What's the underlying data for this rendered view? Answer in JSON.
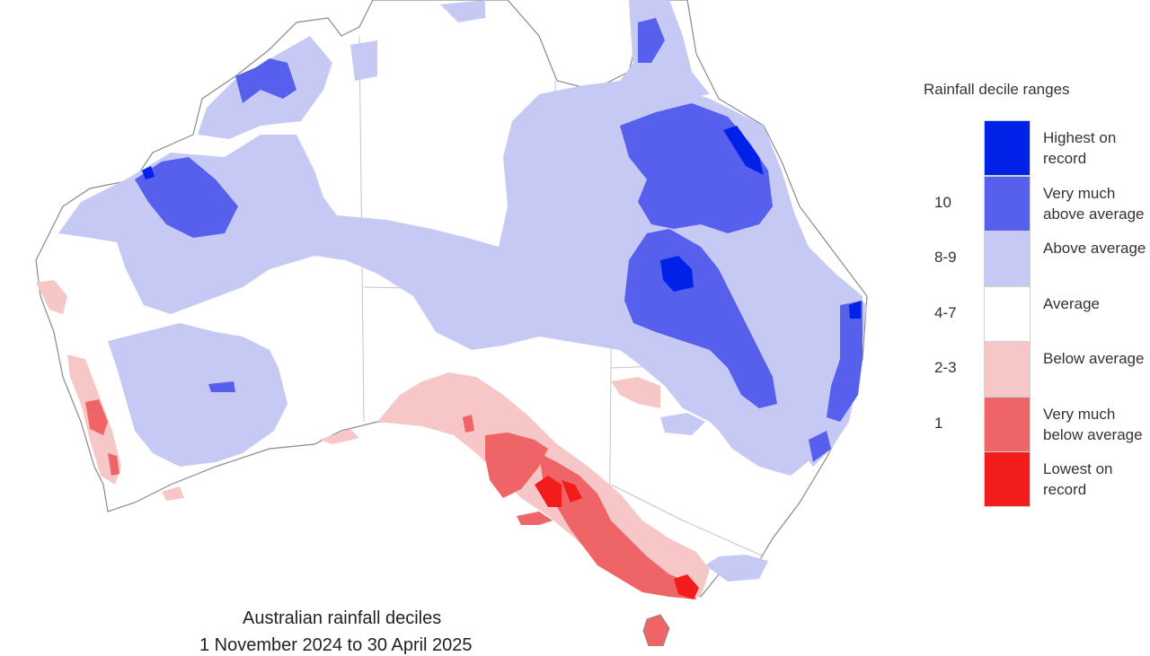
{
  "colors": {
    "highest": "#0022e8",
    "very_much_above": "#5660ec",
    "above": "#c7c9f5",
    "average": "#ffffff",
    "below": "#f7c7c7",
    "very_much_below": "#ef6466",
    "lowest": "#f21c1c",
    "coast": "#8a8a8a",
    "border": "#c4c4c4"
  },
  "legend": {
    "title": "Rainfall decile ranges",
    "items": [
      {
        "range": "",
        "label": "Highest on\nrecord",
        "color": "#0022e8"
      },
      {
        "range": "10",
        "label": "Very much\nabove average",
        "color": "#5660ec"
      },
      {
        "range": "8-9",
        "label": "Above average",
        "color": "#c7c9f5"
      },
      {
        "range": "4-7",
        "label": "Average",
        "color": "#ffffff"
      },
      {
        "range": "2-3",
        "label": "Below average",
        "color": "#f7c7c7"
      },
      {
        "range": "1",
        "label": "Very much\nbelow average",
        "color": "#ef6466"
      },
      {
        "range": "",
        "label": "Lowest on\nrecord",
        "color": "#f21c1c"
      }
    ]
  },
  "map": {
    "title": "Australian rainfall deciles",
    "subtitle": "1 November 2024 to 30 April 2025"
  }
}
